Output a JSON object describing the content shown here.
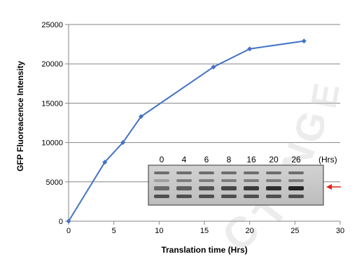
{
  "chart_data": {
    "type": "line",
    "xlabel": "Translation time  (Hrs)",
    "ylabel": "GFP Fluoreacence Intensity",
    "xlim": [
      0,
      30
    ],
    "ylim": [
      0,
      25000
    ],
    "x_ticks": [
      0,
      5,
      10,
      15,
      20,
      25,
      30
    ],
    "y_ticks": [
      0,
      5000,
      10000,
      15000,
      20000,
      25000
    ],
    "grid": "horizontal",
    "series": [
      {
        "x": [
          0,
          4,
          6,
          8,
          16,
          20,
          26
        ],
        "values": [
          0,
          7500,
          10000,
          13300,
          19600,
          21900,
          22900
        ],
        "color": "#4472c4",
        "marker": "diamond"
      }
    ],
    "inset": {
      "type": "gel-image",
      "lane_labels": [
        "0",
        "4",
        "6",
        "8",
        "16",
        "20",
        "26"
      ],
      "unit_label": "(Hrs)",
      "arrow_color": "#e0201b"
    },
    "watermark": {
      "letters": [
        "C",
        "T",
        "I",
        "N",
        "G",
        "E"
      ]
    }
  }
}
